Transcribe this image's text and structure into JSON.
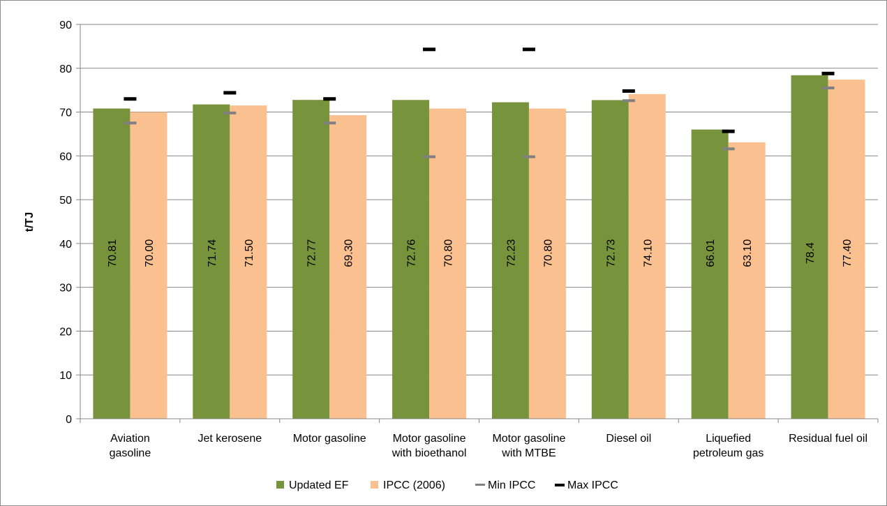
{
  "chart_data": {
    "type": "bar",
    "title": "",
    "ylabel": "t/TJ",
    "xlabel": "",
    "ylim": [
      0,
      90
    ],
    "yticks": [
      "0",
      "10",
      "20",
      "30",
      "40",
      "50",
      "60",
      "70",
      "80",
      "90"
    ],
    "grid": true,
    "legend_position": "bottom",
    "categories": [
      [
        "Aviation",
        "gasoline"
      ],
      [
        "Jet kerosene"
      ],
      [
        "Motor gasoline"
      ],
      [
        "Motor gasoline",
        "with bioethanol"
      ],
      [
        "Motor gasoline",
        "with MTBE"
      ],
      [
        "Diesel oil"
      ],
      [
        "Liquefied",
        "petroleum gas"
      ],
      [
        "Residual fuel oil"
      ]
    ],
    "series": [
      {
        "name": "Updated EF",
        "color": "#77933c",
        "values": [
          70.81,
          71.74,
          72.77,
          72.76,
          72.23,
          72.73,
          66.01,
          78.4
        ],
        "labels": [
          "70.81",
          "71.74",
          "72.77",
          "72.76",
          "72.23",
          "72.73",
          "66.01",
          "78.4"
        ]
      },
      {
        "name": "IPCC (2006)",
        "color": "#fac090",
        "values": [
          70.0,
          71.5,
          69.3,
          70.8,
          70.8,
          74.1,
          63.1,
          77.4
        ],
        "labels": [
          "70.00",
          "71.50",
          "69.30",
          "70.80",
          "70.80",
          "74.10",
          "63.10",
          "77.40"
        ]
      },
      {
        "name": "Min IPCC",
        "color": "#808080",
        "marker": "dash",
        "values": [
          67.5,
          69.8,
          67.5,
          59.8,
          59.8,
          72.6,
          61.6,
          75.5
        ]
      },
      {
        "name": "Max IPCC",
        "color": "#000000",
        "marker": "dash",
        "values": [
          73.0,
          74.4,
          73.0,
          84.3,
          84.3,
          74.8,
          65.6,
          78.8
        ]
      }
    ]
  }
}
